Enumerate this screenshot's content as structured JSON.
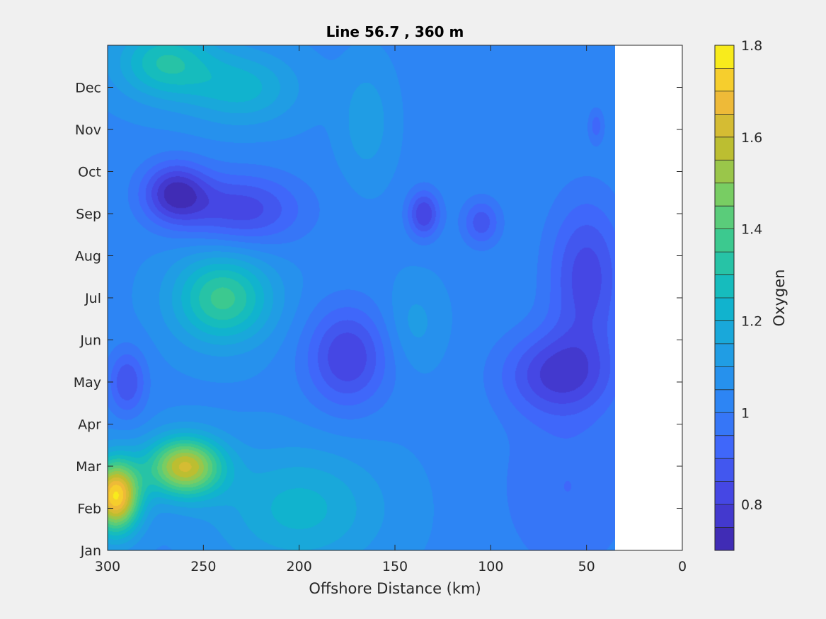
{
  "chart_data": {
    "type": "heatmap",
    "title": "Line 56.7 , 360 m",
    "xlabel": "Offshore Distance (km)",
    "ylabel": "",
    "colorbar_label": "Oxygen",
    "xlim": [
      300,
      0
    ],
    "x_reversed": true,
    "x_ticks": [
      "300",
      "250",
      "200",
      "150",
      "100",
      "50",
      "0"
    ],
    "x_tick_values": [
      300,
      250,
      200,
      150,
      100,
      50,
      0
    ],
    "y_ticks": [
      "Jan",
      "Feb",
      "Mar",
      "Apr",
      "May",
      "Jun",
      "Jul",
      "Aug",
      "Sep",
      "Oct",
      "Nov",
      "Dec"
    ],
    "y_tick_values": [
      0,
      1,
      2,
      3,
      4,
      5,
      6,
      7,
      8,
      9,
      10,
      11
    ],
    "ylim": [
      0,
      12
    ],
    "data_x_range": [
      300,
      35
    ],
    "colorbar": {
      "min": 0.7,
      "max": 1.8,
      "step": 0.05,
      "tick_values": [
        0.8,
        1.0,
        1.2,
        1.4,
        1.6,
        1.8
      ],
      "tick_labels": [
        "0.8",
        "1",
        "1.2",
        "1.4",
        "1.6",
        "1.8"
      ]
    },
    "features": [
      {
        "x": 296,
        "y": 1.3,
        "value": 1.75,
        "sx": 9,
        "sy": 0.6
      },
      {
        "x": 260,
        "y": 2.0,
        "value": 1.6,
        "sx": 14,
        "sy": 0.5
      },
      {
        "x": 240,
        "y": 6.0,
        "value": 1.37,
        "sx": 18,
        "sy": 0.75
      },
      {
        "x": 265,
        "y": 8.5,
        "value": 0.75,
        "sx": 12,
        "sy": 0.5
      },
      {
        "x": 230,
        "y": 8.1,
        "value": 0.82,
        "sx": 22,
        "sy": 0.6
      },
      {
        "x": 290,
        "y": 4.0,
        "value": 0.85,
        "sx": 7,
        "sy": 0.55
      },
      {
        "x": 175,
        "y": 4.6,
        "value": 0.8,
        "sx": 15,
        "sy": 0.85
      },
      {
        "x": 135,
        "y": 8.0,
        "value": 0.8,
        "sx": 6,
        "sy": 0.4
      },
      {
        "x": 105,
        "y": 7.8,
        "value": 0.87,
        "sx": 7,
        "sy": 0.4
      },
      {
        "x": 65,
        "y": 4.2,
        "value": 0.8,
        "sx": 20,
        "sy": 0.7
      },
      {
        "x": 50,
        "y": 6.5,
        "value": 0.82,
        "sx": 14,
        "sy": 1.3
      },
      {
        "x": 140,
        "y": 5.4,
        "value": 1.12,
        "sx": 10,
        "sy": 0.7
      },
      {
        "x": 165,
        "y": 10.2,
        "value": 1.14,
        "sx": 9,
        "sy": 0.9
      },
      {
        "x": 270,
        "y": 11.6,
        "value": 1.3,
        "sx": 18,
        "sy": 0.6
      },
      {
        "x": 230,
        "y": 11.0,
        "value": 1.22,
        "sx": 20,
        "sy": 0.6
      },
      {
        "x": 200,
        "y": 1.0,
        "value": 1.22,
        "sx": 30,
        "sy": 1.0
      },
      {
        "x": 45,
        "y": 10.1,
        "value": 0.93,
        "sx": 3,
        "sy": 0.3
      },
      {
        "x": 60,
        "y": 1.5,
        "value": 0.95,
        "sx": 25,
        "sy": 1.5
      }
    ],
    "background_value": 1.04
  }
}
